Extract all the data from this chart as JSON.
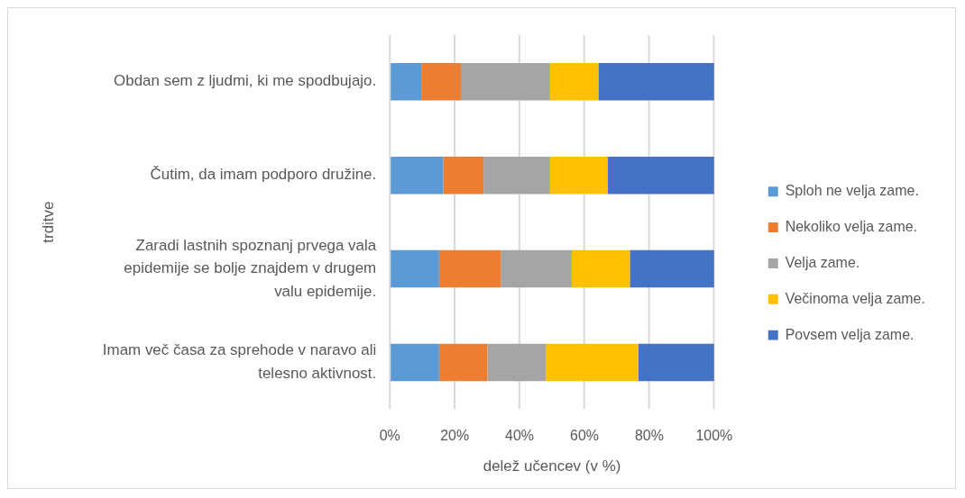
{
  "chart_data": {
    "type": "bar",
    "orientation": "horizontal",
    "stacked": true,
    "categories": [
      "Obdan sem z ljudmi, ki me spodbujajo.",
      "Čutim, da imam podporo družine.",
      "Zaradi lastnih spoznanj prvega vala epidemije se bolje znajdem v drugem valu epidemije.",
      "Imam več časa za sprehode v naravo ali telesno aktivnost."
    ],
    "xlabel": "delež učencev (v %)",
    "ylabel": "trditve",
    "xlim": [
      0,
      100
    ],
    "xticks": [
      {
        "value": 0,
        "label": "0%"
      },
      {
        "value": 20,
        "label": "20%"
      },
      {
        "value": 40,
        "label": "40%"
      },
      {
        "value": 60,
        "label": "60%"
      },
      {
        "value": 80,
        "label": "80%"
      },
      {
        "value": 100,
        "label": "100%"
      }
    ],
    "grid": "x",
    "legend": "right",
    "series": [
      {
        "name": "Sploh ne velja zame.",
        "color": "#5b9bd5",
        "values": [
          9.9,
          16.5,
          15.2,
          15.2
        ]
      },
      {
        "name": "Nekoliko velja zame.",
        "color": "#ed7d31",
        "values": [
          12,
          12.4,
          19,
          14.9
        ]
      },
      {
        "name": "Velja zame.",
        "color": "#a5a5a5",
        "values": [
          27.5,
          20.5,
          21.9,
          18
        ]
      },
      {
        "name": "Večinoma velja zame.",
        "color": "#ffc000",
        "values": [
          14.9,
          17.8,
          17.9,
          28.5
        ]
      },
      {
        "name": "Povsem velja zame.",
        "color": "#4472c4",
        "values": [
          35.7,
          32.8,
          26,
          23.4
        ]
      }
    ]
  }
}
